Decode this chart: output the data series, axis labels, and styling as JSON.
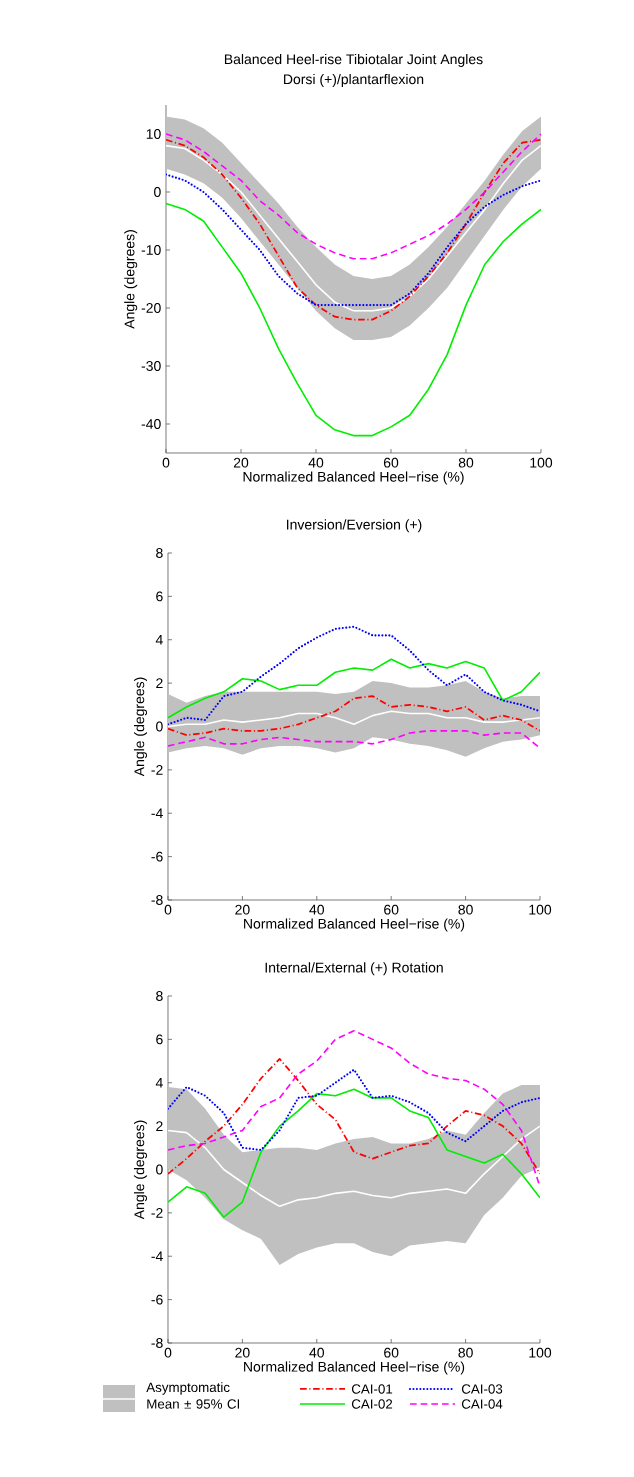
{
  "chart_data": [
    {
      "type": "line",
      "title": "Balanced Heel-rise Tibiotalar Joint Angles",
      "subtitle": "Dorsi (+)/plantarflexion",
      "xlabel": "Normalized Balanced Heel−rise (%)",
      "ylabel": "Angle (degrees)",
      "x": [
        0,
        5,
        10,
        15,
        20,
        25,
        30,
        35,
        40,
        45,
        50,
        55,
        60,
        65,
        70,
        75,
        80,
        85,
        90,
        95,
        100
      ],
      "xlim": [
        0,
        100
      ],
      "ylim": [
        -45,
        15
      ],
      "xticks": [
        0,
        20,
        40,
        60,
        80,
        100
      ],
      "yticks": [
        -40,
        -30,
        -20,
        -10,
        0,
        10
      ],
      "series": [
        {
          "color": "#ffffff",
          "line_style": "solid",
          "values": [
            8,
            7.5,
            5.5,
            3,
            0,
            -4,
            -8,
            -12,
            -16,
            -19,
            -20.5,
            -20.5,
            -20,
            -18,
            -15,
            -11,
            -7,
            -3,
            1.5,
            5.5,
            8
          ],
          "lower": [
            4,
            3,
            1.5,
            -1,
            -4.5,
            -8.5,
            -12.5,
            -16.5,
            -20.5,
            -23.5,
            -25.5,
            -25.5,
            -25,
            -23,
            -20,
            -16.5,
            -12,
            -7.5,
            -3,
            1,
            4
          ],
          "upper": [
            13,
            12.5,
            11,
            8.5,
            5,
            1.5,
            -2,
            -6,
            -9.5,
            -12.5,
            -14.5,
            -15,
            -14.5,
            -12.5,
            -9.5,
            -6,
            -2,
            2,
            6.5,
            10.5,
            13
          ]
        },
        {
          "color": "#ff0000",
          "line_style": "dashdot",
          "values": [
            9,
            8,
            6,
            3,
            -1,
            -5.5,
            -11,
            -16.5,
            -19.5,
            -21.5,
            -22,
            -22,
            -20.5,
            -18,
            -14.5,
            -10.5,
            -5.5,
            0,
            5,
            8.5,
            9
          ]
        },
        {
          "color": "#00ee00",
          "line_style": "solid",
          "values": [
            -2,
            -3,
            -5,
            -9.5,
            -14,
            -20,
            -27,
            -33,
            -38.5,
            -41,
            -42,
            -42,
            -40.5,
            -38.5,
            -34,
            -28,
            -19.5,
            -12.5,
            -8.5,
            -5.5,
            -3
          ]
        },
        {
          "color": "#0000ff",
          "line_style": "dotted",
          "values": [
            3,
            2,
            0,
            -3,
            -6.5,
            -10,
            -14.5,
            -17.5,
            -19.5,
            -19.5,
            -19.5,
            -19.5,
            -19.5,
            -17.5,
            -14,
            -9.5,
            -5.5,
            -2.5,
            -0.5,
            1,
            2
          ]
        },
        {
          "color": "#ff00ff",
          "line_style": "dashed",
          "values": [
            10,
            9,
            7,
            4.5,
            2,
            -1.5,
            -4,
            -7,
            -9,
            -10.5,
            -11.5,
            -11.5,
            -10.5,
            -9,
            -7.5,
            -5.5,
            -3,
            0,
            3.5,
            7,
            10
          ]
        }
      ]
    },
    {
      "type": "line",
      "title": "Inversion/Eversion (+)",
      "xlabel": "Normalized Balanced Heel−rise (%)",
      "ylabel": "Angle (degrees)",
      "x": [
        0,
        5,
        10,
        15,
        20,
        25,
        30,
        35,
        40,
        45,
        50,
        55,
        60,
        65,
        70,
        75,
        80,
        85,
        90,
        95,
        100
      ],
      "xlim": [
        0,
        100
      ],
      "ylim": [
        -8,
        8
      ],
      "xticks": [
        0,
        20,
        40,
        60,
        80,
        100
      ],
      "yticks": [
        -8,
        -6,
        -4,
        -2,
        0,
        2,
        4,
        6,
        8
      ],
      "series": [
        {
          "color": "#ffffff",
          "line_style": "solid",
          "values": [
            0,
            0.1,
            0.1,
            0.3,
            0.2,
            0.3,
            0.4,
            0.6,
            0.6,
            0.4,
            0.1,
            0.5,
            0.7,
            0.6,
            0.6,
            0.4,
            0.4,
            0.2,
            0.2,
            0.3,
            0.4
          ],
          "lower": [
            -1.2,
            -1.0,
            -0.9,
            -1.0,
            -1.3,
            -1.0,
            -0.9,
            -0.9,
            -1.0,
            -1.2,
            -1.0,
            -0.5,
            -0.6,
            -0.8,
            -0.9,
            -1.1,
            -1.4,
            -1.0,
            -0.7,
            -0.6,
            -0.4
          ],
          "upper": [
            1.5,
            1.1,
            1.4,
            1.6,
            1.6,
            1.6,
            1.6,
            1.6,
            1.6,
            1.5,
            1.6,
            2.1,
            2.0,
            1.8,
            1.8,
            1.9,
            2.1,
            1.6,
            1.3,
            1.4,
            1.4
          ]
        },
        {
          "color": "#ff0000",
          "line_style": "dashdot",
          "values": [
            -0.1,
            -0.4,
            -0.3,
            -0.1,
            -0.2,
            -0.2,
            -0.1,
            0.1,
            0.4,
            0.7,
            1.3,
            1.4,
            0.9,
            1.0,
            0.9,
            0.7,
            0.9,
            0.3,
            0.5,
            0.3,
            -0.2
          ]
        },
        {
          "color": "#00ee00",
          "line_style": "solid",
          "values": [
            0.4,
            0.9,
            1.3,
            1.6,
            2.2,
            2.1,
            1.7,
            1.9,
            1.9,
            2.5,
            2.7,
            2.6,
            3.1,
            2.7,
            2.9,
            2.7,
            3.0,
            2.7,
            1.2,
            1.6,
            2.5
          ]
        },
        {
          "color": "#0000ff",
          "line_style": "dotted",
          "values": [
            0.1,
            0.4,
            0.3,
            1.4,
            1.6,
            2.3,
            2.9,
            3.6,
            4.1,
            4.5,
            4.6,
            4.2,
            4.2,
            3.5,
            2.6,
            1.9,
            2.4,
            1.6,
            1.2,
            1.0,
            0.7
          ]
        },
        {
          "color": "#ff00ff",
          "line_style": "dashed",
          "values": [
            -0.9,
            -0.7,
            -0.5,
            -0.8,
            -0.8,
            -0.6,
            -0.5,
            -0.6,
            -0.7,
            -0.7,
            -0.7,
            -0.8,
            -0.6,
            -0.3,
            -0.2,
            -0.2,
            -0.2,
            -0.4,
            -0.3,
            -0.3,
            -1.0
          ]
        }
      ]
    },
    {
      "type": "line",
      "title": "Internal/External (+) Rotation",
      "xlabel": "Normalized Balanced Heel−rise (%)",
      "ylabel": "Angle (degrees)",
      "x": [
        0,
        5,
        10,
        15,
        20,
        25,
        30,
        35,
        40,
        45,
        50,
        55,
        60,
        65,
        70,
        75,
        80,
        85,
        90,
        95,
        100
      ],
      "xlim": [
        0,
        100
      ],
      "ylim": [
        -8,
        8
      ],
      "xticks": [
        0,
        20,
        40,
        60,
        80,
        100
      ],
      "yticks": [
        -8,
        -6,
        -4,
        -2,
        0,
        2,
        4,
        6,
        8
      ],
      "legend": "bottom",
      "series": [
        {
          "name": "Asymptomatic Mean ± 95% CI",
          "color": "#ffffff",
          "line_style": "solid",
          "values": [
            1.8,
            1.7,
            1.0,
            0.0,
            -0.6,
            -1.2,
            -1.7,
            -1.4,
            -1.3,
            -1.1,
            -1.0,
            -1.2,
            -1.3,
            -1.1,
            -1.0,
            -0.9,
            -1.1,
            -0.2,
            0.6,
            1.4,
            2.0
          ],
          "lower": [
            0.0,
            -0.5,
            -1.3,
            -2.3,
            -2.8,
            -3.2,
            -4.4,
            -3.9,
            -3.6,
            -3.4,
            -3.4,
            -3.8,
            -4.0,
            -3.5,
            -3.4,
            -3.3,
            -3.4,
            -2.1,
            -1.3,
            -0.3,
            0.1
          ],
          "upper": [
            3.8,
            3.7,
            2.8,
            1.6,
            0.8,
            0.9,
            1.0,
            1.0,
            0.9,
            1.2,
            1.4,
            1.5,
            1.2,
            1.2,
            1.4,
            1.8,
            1.6,
            2.6,
            3.5,
            3.9,
            3.9
          ]
        },
        {
          "name": "CAI-01",
          "color": "#ff0000",
          "line_style": "dashdot",
          "values": [
            -0.2,
            0.5,
            1.3,
            2.0,
            3.0,
            4.2,
            5.1,
            4.1,
            3.0,
            2.3,
            0.8,
            0.5,
            0.8,
            1.1,
            1.2,
            2.0,
            2.7,
            2.5,
            2.0,
            1.2,
            -0.2
          ]
        },
        {
          "name": "CAI-02",
          "color": "#00ee00",
          "line_style": "solid",
          "values": [
            -1.5,
            -0.8,
            -1.1,
            -2.2,
            -1.5,
            0.8,
            2.0,
            2.7,
            3.5,
            3.4,
            3.7,
            3.3,
            3.3,
            2.7,
            2.4,
            0.9,
            0.6,
            0.3,
            0.7,
            -0.2,
            -1.3
          ]
        },
        {
          "name": "CAI-03",
          "color": "#0000ff",
          "line_style": "dotted",
          "values": [
            2.8,
            3.8,
            3.4,
            2.6,
            1.0,
            0.9,
            1.8,
            3.3,
            3.4,
            4.0,
            4.6,
            3.3,
            3.4,
            3.1,
            2.6,
            1.7,
            1.3,
            2.0,
            2.7,
            3.1,
            3.3
          ]
        },
        {
          "name": "CAI-04",
          "color": "#ff00ff",
          "line_style": "dashed",
          "values": [
            0.9,
            1.1,
            1.2,
            1.5,
            1.8,
            2.9,
            3.3,
            4.4,
            5.0,
            6.0,
            6.4,
            6.0,
            5.6,
            4.9,
            4.4,
            4.2,
            4.1,
            3.7,
            3.0,
            1.8,
            -0.8
          ]
        }
      ]
    }
  ]
}
